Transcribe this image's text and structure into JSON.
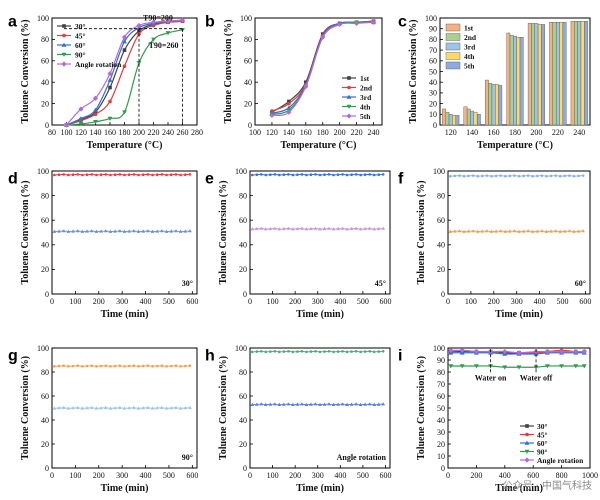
{
  "chart_data": [
    {
      "panel": "a",
      "type": "line",
      "xlabel": "Temperature (°C)",
      "ylabel": "Toluene Conversion (%)",
      "xlim": [
        80,
        280
      ],
      "ylim": [
        0,
        100
      ],
      "xticks": [
        80,
        100,
        120,
        140,
        160,
        180,
        200,
        220,
        240,
        260,
        280
      ],
      "yticks": [
        0,
        20,
        40,
        60,
        80,
        100
      ],
      "legend_position": "top-left",
      "annotations": [
        "T90=200",
        "T90=260"
      ],
      "series": [
        {
          "name": "30°",
          "color": "#404040",
          "x": [
            100,
            120,
            140,
            160,
            180,
            200,
            220,
            240,
            260
          ],
          "y": [
            0,
            5,
            12,
            35,
            70,
            88,
            94,
            96,
            97
          ]
        },
        {
          "name": "45°",
          "color": "#e23c3c",
          "x": [
            100,
            120,
            140,
            160,
            180,
            200,
            220,
            240,
            260
          ],
          "y": [
            0,
            4,
            10,
            22,
            55,
            85,
            93,
            96,
            97
          ]
        },
        {
          "name": "60°",
          "color": "#2f6fd6",
          "x": [
            100,
            120,
            140,
            160,
            180,
            200,
            220,
            240,
            260
          ],
          "y": [
            0,
            6,
            14,
            42,
            78,
            91,
            95,
            97,
            98
          ]
        },
        {
          "name": "90°",
          "color": "#2e9e4a",
          "x": [
            100,
            120,
            140,
            160,
            180,
            200,
            220,
            240,
            260
          ],
          "y": [
            0,
            1,
            3,
            6,
            12,
            58,
            80,
            86,
            89
          ]
        },
        {
          "name": "Angle rotation",
          "color": "#b36ad8",
          "x": [
            100,
            120,
            140,
            160,
            180,
            200,
            220,
            240,
            260
          ],
          "y": [
            0,
            15,
            25,
            48,
            82,
            93,
            96,
            97,
            98
          ]
        }
      ]
    },
    {
      "panel": "b",
      "type": "line",
      "xlabel": "Temperature (°C)",
      "ylabel": "Toluene Conversion (%)",
      "xlim": [
        100,
        250
      ],
      "ylim": [
        0,
        100
      ],
      "xticks": [
        100,
        120,
        140,
        160,
        180,
        200,
        220,
        240
      ],
      "yticks": [
        0,
        20,
        40,
        60,
        80,
        100
      ],
      "legend_position": "right",
      "series": [
        {
          "name": "1st",
          "color": "#404040",
          "x": [
            120,
            140,
            160,
            180,
            200,
            220,
            240
          ],
          "y": [
            12,
            22,
            40,
            85,
            95,
            96,
            97
          ]
        },
        {
          "name": "2nd",
          "color": "#e23c3c",
          "x": [
            120,
            140,
            160,
            180,
            200,
            220,
            240
          ],
          "y": [
            13,
            20,
            38,
            84,
            95,
            96,
            97
          ]
        },
        {
          "name": "3rd",
          "color": "#2f6fd6",
          "x": [
            120,
            140,
            160,
            180,
            200,
            220,
            240
          ],
          "y": [
            11,
            16,
            37,
            83,
            95,
            96,
            96
          ]
        },
        {
          "name": "4th",
          "color": "#2e9e4a",
          "x": [
            120,
            140,
            160,
            180,
            200,
            220,
            240
          ],
          "y": [
            10,
            14,
            36,
            82,
            94,
            96,
            96
          ]
        },
        {
          "name": "5th",
          "color": "#b36ad8",
          "x": [
            120,
            140,
            160,
            180,
            200,
            220,
            240
          ],
          "y": [
            9,
            12,
            36,
            82,
            94,
            95,
            96
          ]
        }
      ]
    },
    {
      "panel": "c",
      "type": "bar",
      "xlabel": "Temperature (°C)",
      "ylabel": "Toluene Conversion (%)",
      "ylim": [
        0,
        100
      ],
      "categories": [
        "120",
        "140",
        "160",
        "180",
        "200",
        "220",
        "240"
      ],
      "yticks": [
        0,
        10,
        20,
        30,
        40,
        50,
        60,
        70,
        80,
        90,
        100
      ],
      "legend_position": "top-left",
      "series": [
        {
          "name": "1st",
          "color": "#f4b183",
          "values": [
            15,
            17,
            42,
            86,
            95,
            96,
            97
          ]
        },
        {
          "name": "2nd",
          "color": "#a9d18e",
          "values": [
            12,
            15,
            39,
            84,
            95,
            96,
            97
          ]
        },
        {
          "name": "3rd",
          "color": "#9dc3e6",
          "values": [
            10,
            13,
            38,
            83,
            95,
            96,
            97
          ]
        },
        {
          "name": "4th",
          "color": "#ffd966",
          "values": [
            9,
            12,
            38,
            82,
            94,
            96,
            97
          ]
        },
        {
          "name": "5th",
          "color": "#8faadc",
          "values": [
            9,
            10,
            37,
            82,
            94,
            96,
            97
          ]
        }
      ]
    },
    {
      "panel": "d",
      "type": "scatter",
      "tag": "30°",
      "xlabel": "Time (min)",
      "ylabel": "Toluene Conversion (%)",
      "xlim": [
        0,
        620
      ],
      "ylim": [
        0,
        100
      ],
      "xticks": [
        0,
        100,
        200,
        300,
        400,
        500,
        600
      ],
      "yticks": [
        0,
        20,
        40,
        60,
        80,
        100
      ],
      "series": [
        {
          "color": "#e23c3c",
          "level": 97,
          "x_start": 10,
          "x_end": 600
        },
        {
          "color": "#6b8fd6",
          "level": 51,
          "x_start": 10,
          "x_end": 600
        }
      ]
    },
    {
      "panel": "e",
      "type": "scatter",
      "tag": "45°",
      "xlabel": "Time (min)",
      "ylabel": "Toluene Conversion (%)",
      "xlim": [
        0,
        620
      ],
      "ylim": [
        0,
        100
      ],
      "xticks": [
        0,
        100,
        200,
        300,
        400,
        500,
        600
      ],
      "yticks": [
        0,
        20,
        40,
        60,
        80,
        100
      ],
      "series": [
        {
          "color": "#3b6fd6",
          "level": 97,
          "x_start": 10,
          "x_end": 600
        },
        {
          "color": "#c895e0",
          "level": 53,
          "x_start": 10,
          "x_end": 600
        }
      ]
    },
    {
      "panel": "f",
      "type": "scatter",
      "tag": "60°",
      "xlabel": "Time (min)",
      "ylabel": "Toluene Conversion (%)",
      "xlim": [
        0,
        620
      ],
      "ylim": [
        0,
        100
      ],
      "xticks": [
        0,
        100,
        200,
        300,
        400,
        500,
        600
      ],
      "yticks": [
        0,
        20,
        40,
        60,
        80,
        100
      ],
      "series": [
        {
          "color": "#7fb3e6",
          "level": 96,
          "x_start": 10,
          "x_end": 600
        },
        {
          "color": "#f0a050",
          "level": 51,
          "x_start": 10,
          "x_end": 600
        }
      ]
    },
    {
      "panel": "g",
      "type": "scatter",
      "tag": "90°",
      "xlabel": "Time (min)",
      "ylabel": "Toluene Conversion (%)",
      "xlim": [
        0,
        620
      ],
      "ylim": [
        0,
        100
      ],
      "xticks": [
        0,
        100,
        200,
        300,
        400,
        500,
        600
      ],
      "yticks": [
        0,
        20,
        40,
        60,
        80,
        100
      ],
      "series": [
        {
          "color": "#f0a050",
          "level": 85,
          "x_start": 10,
          "x_end": 600
        },
        {
          "color": "#9fc5e8",
          "level": 50,
          "x_start": 10,
          "x_end": 600
        }
      ]
    },
    {
      "panel": "h",
      "type": "scatter",
      "tag": "Angle rotation",
      "xlabel": "Time (min)",
      "ylabel": "Toluene Conversion (%)",
      "xlim": [
        0,
        620
      ],
      "ylim": [
        0,
        100
      ],
      "xticks": [
        0,
        100,
        200,
        300,
        400,
        500,
        600
      ],
      "yticks": [
        0,
        20,
        40,
        60,
        80,
        100
      ],
      "series": [
        {
          "color": "#3fb07a",
          "level": 97,
          "x_start": 10,
          "x_end": 600
        },
        {
          "color": "#5a7fd6",
          "level": 53,
          "x_start": 10,
          "x_end": 600
        }
      ]
    },
    {
      "panel": "i",
      "type": "line",
      "xlabel": "Time (min)",
      "ylabel": "Toluene Conversion (%)",
      "xlim": [
        0,
        1000
      ],
      "ylim": [
        0,
        100
      ],
      "xticks": [
        0,
        200,
        400,
        600,
        800,
        1000
      ],
      "yticks": [
        0,
        10,
        20,
        30,
        40,
        50,
        60,
        70,
        80,
        90,
        100
      ],
      "annotations": [
        "Water on",
        "Water off"
      ],
      "event_lines_x": [
        300,
        620
      ],
      "legend_position": "bottom-right",
      "series": [
        {
          "name": "30°",
          "color": "#404040",
          "x": [
            20,
            100,
            200,
            300,
            400,
            500,
            620,
            700,
            800,
            900,
            960
          ],
          "y": [
            97,
            97,
            97,
            97,
            96,
            96,
            96,
            97,
            97,
            97,
            97
          ]
        },
        {
          "name": "45°",
          "color": "#e23c3c",
          "x": [
            20,
            100,
            200,
            300,
            400,
            500,
            620,
            700,
            800,
            900,
            960
          ],
          "y": [
            97,
            98,
            97,
            97,
            97,
            96,
            96,
            97,
            98,
            97,
            97
          ]
        },
        {
          "name": "60°",
          "color": "#2f6fd6",
          "x": [
            20,
            100,
            200,
            300,
            400,
            500,
            620,
            700,
            800,
            900,
            960
          ],
          "y": [
            96,
            96,
            96,
            96,
            95,
            95,
            95,
            96,
            96,
            96,
            96
          ]
        },
        {
          "name": "90°",
          "color": "#2e9e4a",
          "x": [
            20,
            100,
            200,
            300,
            400,
            500,
            620,
            700,
            800,
            900,
            960
          ],
          "y": [
            85,
            85,
            85,
            85,
            84,
            84,
            84,
            85,
            85,
            85,
            85
          ]
        },
        {
          "name": "Angle rotation",
          "color": "#b36ad8",
          "x": [
            20,
            100,
            200,
            300,
            400,
            500,
            620,
            700,
            800,
            900,
            960
          ],
          "y": [
            98,
            98,
            97,
            97,
            97,
            96,
            97,
            97,
            97,
            97,
            97
          ]
        }
      ]
    }
  ],
  "watermark": "公众号 · 中国气科技"
}
